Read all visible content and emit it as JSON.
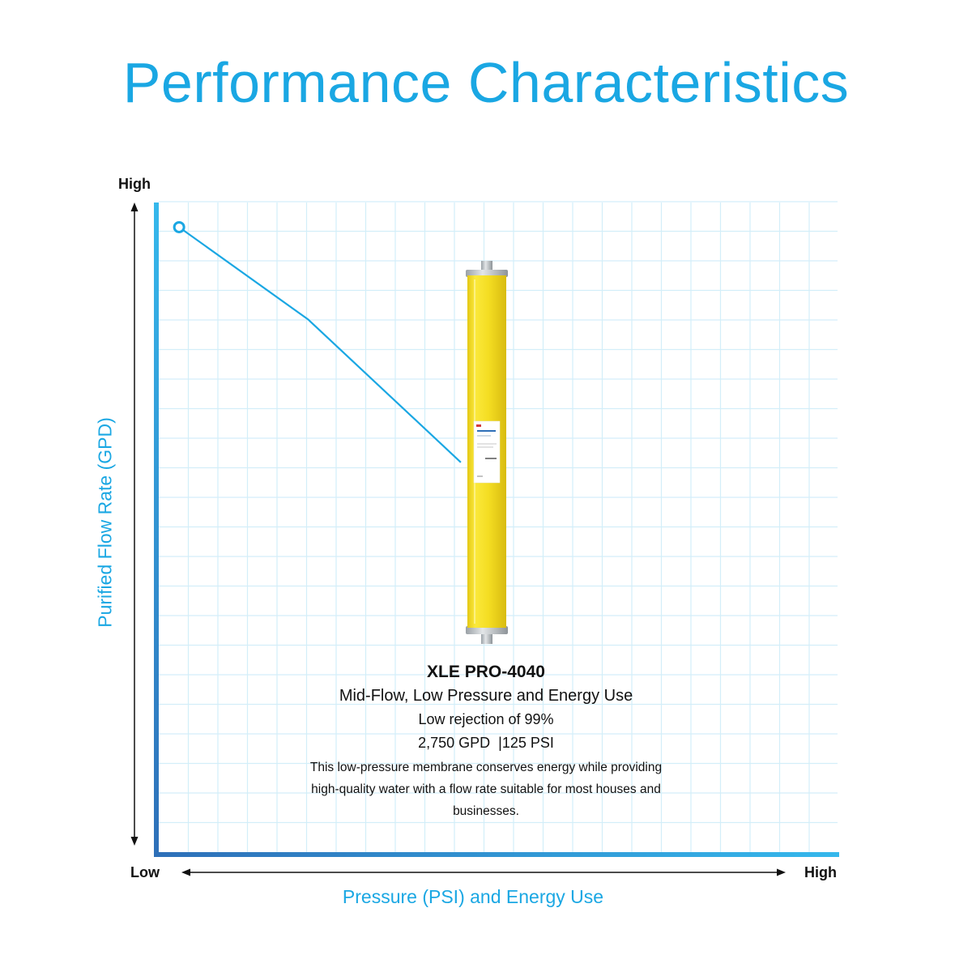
{
  "page": {
    "title": "Performance Characteristics",
    "title_color": "#1aa7e3"
  },
  "chart_data": {
    "type": "line",
    "xlabel": "Pressure (PSI) and Energy Use",
    "ylabel": "Purified Flow Rate (GPD)",
    "x_axis": {
      "low_label": "Low",
      "high_label": "High"
    },
    "y_axis": {
      "low_label": "",
      "high_label": "High"
    },
    "xlim": [
      0,
      1
    ],
    "ylim": [
      0,
      1
    ],
    "grid": true,
    "series": [
      {
        "x": [
          0.03,
          0.22,
          0.445
        ],
        "y": [
          0.962,
          0.82,
          0.6
        ],
        "marker": "open-circle-at-start",
        "color": "#1aa7e3"
      }
    ],
    "callout": {
      "product_name": "XLE PRO-4040",
      "tagline": "Mid-Flow, Low Pressure and Energy Use",
      "rejection": "Low rejection of 99%",
      "spec": "2,750 GPD  |125 PSI",
      "description": "This low-pressure membrane conserves energy while providing high-quality water with a flow rate suitable for most houses and businesses."
    }
  },
  "product_image": {
    "icon": "membrane-cartridge-icon",
    "body_color": "#f7e12a"
  },
  "colors": {
    "accent": "#1aa7e3",
    "axis_gradient_start": "#2e6fb8",
    "axis_gradient_end": "#35b8ec",
    "grid": "#d3eef9",
    "text": "#111111"
  }
}
